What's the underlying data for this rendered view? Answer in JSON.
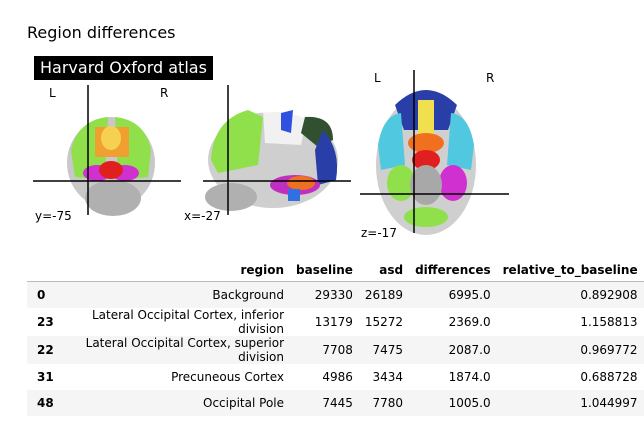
{
  "title": "Region differences",
  "atlas_label": "Harvard Oxford atlas",
  "orient": {
    "left": "L",
    "right": "R"
  },
  "coords": {
    "y": "y=-75",
    "x": "x=-27",
    "z": "z=-17"
  },
  "colors": {
    "background": "#000000",
    "crosshair": "#000000"
  },
  "table": {
    "columns": [
      "region",
      "baseline",
      "asd",
      "differences",
      "relative_to_baseline"
    ],
    "rows": [
      {
        "idx": "0",
        "region": "Background",
        "baseline": "29330",
        "asd": "26189",
        "differences": "6995.0",
        "relative_to_baseline": "0.892908"
      },
      {
        "idx": "23",
        "region": "Lateral Occipital Cortex, inferior division",
        "baseline": "13179",
        "asd": "15272",
        "differences": "2369.0",
        "relative_to_baseline": "1.158813"
      },
      {
        "idx": "22",
        "region": "Lateral Occipital Cortex, superior division",
        "baseline": "7708",
        "asd": "7475",
        "differences": "2087.0",
        "relative_to_baseline": "0.969772"
      },
      {
        "idx": "31",
        "region": "Precuneous Cortex",
        "baseline": "4986",
        "asd": "3434",
        "differences": "1874.0",
        "relative_to_baseline": "0.688728"
      },
      {
        "idx": "48",
        "region": "Occipital Pole",
        "baseline": "7445",
        "asd": "7780",
        "differences": "1005.0",
        "relative_to_baseline": "1.044997"
      }
    ]
  }
}
